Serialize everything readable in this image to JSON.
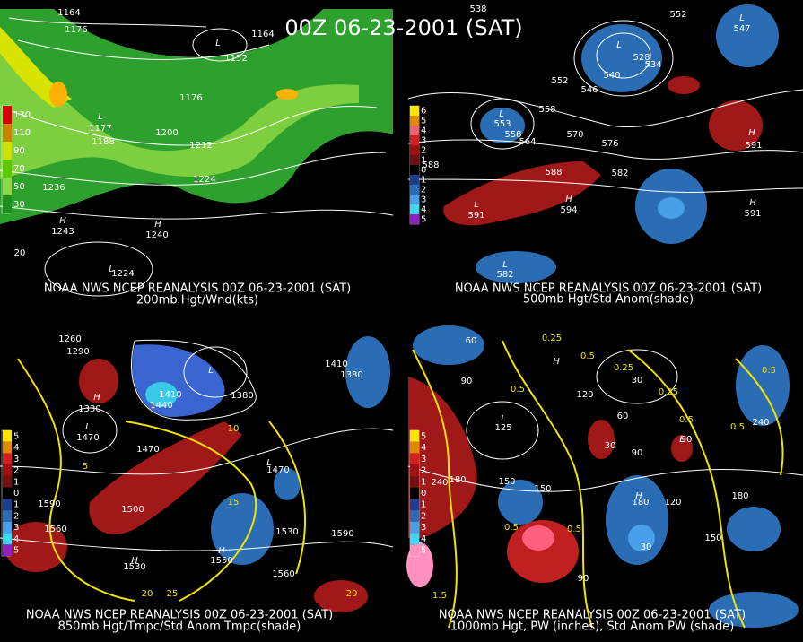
{
  "title": "00Z 06-23-2001 (SAT)",
  "panels": [
    {
      "caption": "NOAA NWS NCEP REANALYSIS 00Z 06-23-2001 (SAT)",
      "subtitle": "200mb Hgt/Wnd(kts)",
      "legend": [
        "130",
        "110",
        "90",
        "70",
        "50",
        "30"
      ],
      "labels": [
        "1164",
        "1176",
        "1164",
        "L",
        "1152",
        "1176",
        "L",
        "1177",
        "1188",
        "1200",
        "1212",
        "1224",
        "1236",
        "H",
        "1243",
        "H",
        "1240",
        "L",
        "1224",
        "20"
      ]
    },
    {
      "caption": "NOAA NWS NCEP REANALYSIS 00Z 06-23-2001 (SAT)",
      "subtitle": "500mb Hgt/Std Anom(shade)",
      "legend": [
        "6",
        "5",
        "4",
        "3",
        "2",
        "1",
        "0",
        "1",
        "2",
        "3",
        "4",
        "5"
      ],
      "labels": [
        "538",
        "552",
        "L",
        "547",
        "L",
        "528",
        "534",
        "540",
        "546",
        "552",
        "558",
        "L",
        "553",
        "558",
        "564",
        "570",
        "576",
        "588",
        "588",
        "582",
        "H",
        "594",
        "L",
        "591",
        "H",
        "591",
        "H",
        "591",
        "L",
        "582"
      ]
    },
    {
      "caption": "NOAA NWS NCEP REANALYSIS 00Z 06-23-2001 (SAT)",
      "subtitle": "850mb Hgt/Tmpc/Std Anom Tmpc(shade)",
      "legend": [
        "5",
        "4",
        "3",
        "2",
        "1",
        "0",
        "1",
        "2",
        "3",
        "4",
        "5"
      ],
      "labels": [
        "1260",
        "1290",
        "H",
        "1330",
        "1410",
        "1440",
        "L",
        "1380",
        "1410",
        "1380",
        "10",
        "5",
        "L",
        "1470",
        "1470",
        "1590",
        "1500",
        "1560",
        "1530",
        "1590",
        "15",
        "L",
        "1470",
        "H",
        "1550",
        "H",
        "1530",
        "20",
        "25",
        "1560",
        "20"
      ]
    },
    {
      "caption": "NOAA NWS NCEP REANALYSIS 00Z 06-23-2001 (SAT)",
      "subtitle": "1000mb Hgt, PW (inches), Std Anom PW (shade)",
      "legend": [
        "5",
        "4",
        "3",
        "2",
        "1",
        "0",
        "1",
        "2",
        "3",
        "4",
        "5"
      ],
      "labels": [
        "60",
        "0.25",
        "90",
        "0.5",
        "0.5",
        "0.25",
        "30",
        "0.25",
        "0.5",
        "H",
        "120",
        "60",
        "L",
        "125",
        "180",
        "150",
        "150",
        "240",
        "30",
        "90",
        "L",
        "90",
        "H",
        "180",
        "120",
        "0.5",
        "0.5",
        "1.5",
        "180",
        "150",
        "240",
        "0.5",
        "0.5",
        "30",
        "90"
      ]
    }
  ]
}
